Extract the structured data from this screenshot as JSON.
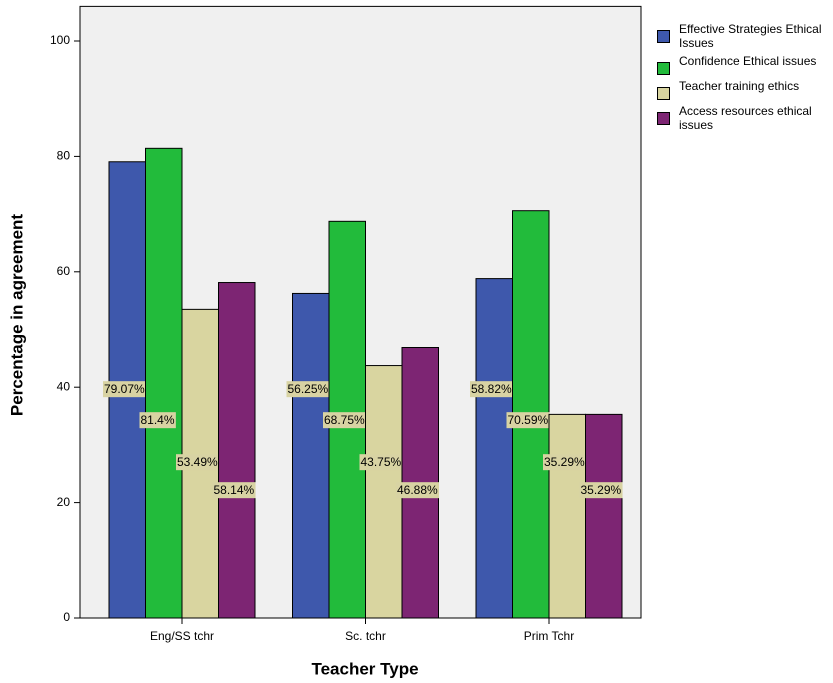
{
  "chart_data": {
    "type": "bar",
    "x_label": "Teacher Type",
    "y_label": "Percentage in agreement",
    "categories": [
      "Eng/SS tchr",
      "Sc. tchr",
      "Prim Tchr"
    ],
    "series": [
      {
        "name": "Effective Strategies Ethical Issues",
        "color": "#3e58ac",
        "values": [
          79.07,
          56.25,
          58.82
        ],
        "value_labels": [
          "79.07%",
          "56.25%",
          "58.82%"
        ]
      },
      {
        "name": "Confidence Ethical issues",
        "color": "#22bb3b",
        "values": [
          81.4,
          68.75,
          70.59
        ],
        "value_labels": [
          "81.4%",
          "68.75%",
          "70.59%"
        ]
      },
      {
        "name": "Teacher training ethics",
        "color": "#d9d5a0",
        "values": [
          53.49,
          43.75,
          35.29
        ],
        "value_labels": [
          "53.49%",
          "43.75%",
          "35.29%"
        ]
      },
      {
        "name": "Access resources ethical issues",
        "color": "#7d2573",
        "values": [
          58.14,
          46.88,
          35.29
        ],
        "value_labels": [
          "58.14%",
          "46.88%",
          "35.29%"
        ]
      }
    ],
    "ylim": [
      0,
      106
    ],
    "yticks": [
      0,
      20,
      40,
      60,
      80,
      100
    ],
    "legend_position": "right"
  }
}
